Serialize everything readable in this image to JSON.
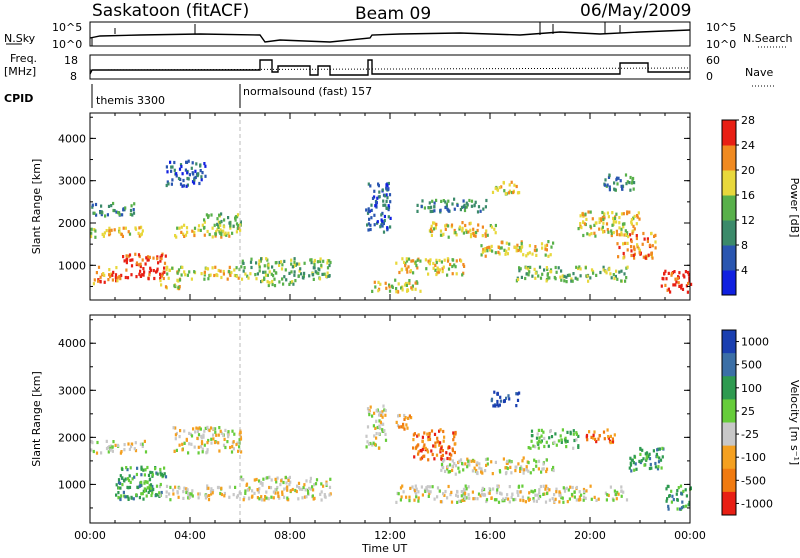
{
  "header": {
    "station": "Saskatoon (fitACF)",
    "beam": "Beam 09",
    "date": "06/May/2009"
  },
  "top_panels": {
    "nsky_label": "N.Sky",
    "nsky_ticks": [
      "10^5",
      "10^0"
    ],
    "nsearch_label": "N.Search",
    "nsearch_ticks": [
      "10^5",
      "10^0"
    ],
    "freq_label_1": "Freq.",
    "freq_label_2": "[MHz]",
    "freq_ticks": [
      "18",
      "8"
    ],
    "nave_label": "Nave",
    "nave_ticks": [
      "60",
      "0"
    ],
    "cpid_label": "CPID",
    "cpid_segments": [
      {
        "label": "themis 3300",
        "start_h": 0.0
      },
      {
        "label": "normalsound (fast) 157",
        "start_h": 6.0
      }
    ]
  },
  "chart_data": [
    {
      "type": "heatmap",
      "title": "",
      "quantity": "Power",
      "ylabel": "Slant Range [km]",
      "ylim": [
        180,
        4600
      ],
      "y_ticks": [
        "1000",
        "2000",
        "3000",
        "4000"
      ],
      "xlim_hours": [
        0,
        24
      ],
      "colorbar_label": "Power [dB]",
      "colorbar_ticks": [
        "4",
        "8",
        "12",
        "16",
        "20",
        "24",
        "28"
      ],
      "colorbar_colors": [
        "#1020e0",
        "#2a56b0",
        "#3b8a6a",
        "#58b04a",
        "#e8d83c",
        "#f08a20",
        "#e81f14"
      ],
      "regions": [
        {
          "t0": 0.0,
          "t1": 2.2,
          "r0": 1700,
          "r1": 1950,
          "level": 4
        },
        {
          "t0": 0.0,
          "t1": 1.8,
          "r0": 2200,
          "r1": 2500,
          "level": 2
        },
        {
          "t0": 1.2,
          "t1": 3.0,
          "r0": 700,
          "r1": 1300,
          "level": 6
        },
        {
          "t0": 0.1,
          "t1": 1.2,
          "r0": 600,
          "r1": 1000,
          "level": 5
        },
        {
          "t0": 3.3,
          "t1": 6.0,
          "r0": 1700,
          "r1": 2000,
          "level": 4
        },
        {
          "t0": 4.5,
          "t1": 6.0,
          "r0": 1900,
          "r1": 2250,
          "level": 3
        },
        {
          "t0": 3.0,
          "t1": 6.0,
          "r0": 700,
          "r1": 1000,
          "level": 4
        },
        {
          "t0": 2.7,
          "t1": 3.6,
          "r0": 450,
          "r1": 700,
          "level": 4
        },
        {
          "t0": 3.0,
          "t1": 4.6,
          "r0": 2900,
          "r1": 3500,
          "level": 1
        },
        {
          "t0": 6.0,
          "t1": 9.6,
          "r0": 700,
          "r1": 1200,
          "level": 3
        },
        {
          "t0": 6.8,
          "t1": 8.2,
          "r0": 550,
          "r1": 750,
          "level": 3
        },
        {
          "t0": 11.0,
          "t1": 12.0,
          "r0": 1800,
          "r1": 3000,
          "level": 1
        },
        {
          "t0": 11.2,
          "t1": 13.2,
          "r0": 400,
          "r1": 700,
          "level": 4
        },
        {
          "t0": 12.2,
          "t1": 15.0,
          "r0": 800,
          "r1": 1200,
          "level": 4
        },
        {
          "t0": 13.5,
          "t1": 16.2,
          "r0": 1700,
          "r1": 2050,
          "level": 4
        },
        {
          "t0": 15.5,
          "t1": 18.5,
          "r0": 1250,
          "r1": 1600,
          "level": 4
        },
        {
          "t0": 16.0,
          "t1": 17.2,
          "r0": 2700,
          "r1": 3000,
          "level": 4
        },
        {
          "t0": 17.0,
          "t1": 21.5,
          "r0": 650,
          "r1": 1000,
          "level": 3
        },
        {
          "t0": 19.5,
          "t1": 22.0,
          "r0": 1700,
          "r1": 2300,
          "level": 4
        },
        {
          "t0": 21.0,
          "t1": 22.6,
          "r0": 1200,
          "r1": 1800,
          "level": 5
        },
        {
          "t0": 22.8,
          "t1": 24.0,
          "r0": 400,
          "r1": 900,
          "level": 6
        },
        {
          "t0": 20.5,
          "t1": 21.8,
          "r0": 2800,
          "r1": 3200,
          "level": 2
        },
        {
          "t0": 13.0,
          "t1": 16.0,
          "r0": 2300,
          "r1": 2600,
          "level": 2
        }
      ]
    },
    {
      "type": "heatmap",
      "title": "",
      "quantity": "Velocity",
      "ylabel": "Slant Range [km]",
      "ylim": [
        180,
        4600
      ],
      "y_ticks": [
        "1000",
        "2000",
        "3000",
        "4000"
      ],
      "xlim_hours": [
        0,
        24
      ],
      "colorbar_label": "Velocity [m s⁻¹]",
      "colorbar_ticks": [
        "1000",
        "500",
        "100",
        "25",
        "-25",
        "-100",
        "-500",
        "-1000"
      ],
      "colorbar_colors": [
        "#1a3fb0",
        "#3b6fa6",
        "#2e9a50",
        "#66cc3a",
        "#c8c8c8",
        "#f4a020",
        "#f07a10",
        "#e81f14"
      ],
      "regions": [
        {
          "t0": 0.0,
          "t1": 2.2,
          "r0": 1700,
          "r1": 1950,
          "level": 4
        },
        {
          "t0": 1.0,
          "t1": 3.0,
          "r0": 700,
          "r1": 1400,
          "level": 2
        },
        {
          "t0": 1.8,
          "t1": 2.8,
          "r0": 800,
          "r1": 1100,
          "level": 3
        },
        {
          "t0": 3.3,
          "t1": 6.0,
          "r0": 1700,
          "r1": 2250,
          "level": 4
        },
        {
          "t0": 3.0,
          "t1": 6.0,
          "r0": 700,
          "r1": 1000,
          "level": 4
        },
        {
          "t0": 6.0,
          "t1": 9.6,
          "r0": 700,
          "r1": 1200,
          "level": 4
        },
        {
          "t0": 12.8,
          "t1": 14.6,
          "r0": 1550,
          "r1": 2200,
          "level": 6
        },
        {
          "t0": 12.2,
          "t1": 13.0,
          "r0": 2200,
          "r1": 2500,
          "level": 5
        },
        {
          "t0": 14.0,
          "t1": 18.5,
          "r0": 1250,
          "r1": 1600,
          "level": 4
        },
        {
          "t0": 12.2,
          "t1": 21.5,
          "r0": 650,
          "r1": 1000,
          "level": 4
        },
        {
          "t0": 16.0,
          "t1": 17.2,
          "r0": 2700,
          "r1": 3000,
          "level": 0
        },
        {
          "t0": 17.5,
          "t1": 19.5,
          "r0": 1800,
          "r1": 2200,
          "level": 3
        },
        {
          "t0": 19.8,
          "t1": 21.0,
          "r0": 1900,
          "r1": 2200,
          "level": 6
        },
        {
          "t0": 21.5,
          "t1": 23.0,
          "r0": 1300,
          "r1": 1800,
          "level": 2
        },
        {
          "t0": 23.0,
          "t1": 24.0,
          "r0": 500,
          "r1": 1000,
          "level": 2
        },
        {
          "t0": 11.0,
          "t1": 11.8,
          "r0": 1800,
          "r1": 2700,
          "level": 4
        }
      ]
    }
  ],
  "x_axis": {
    "label": "Time UT",
    "ticks": [
      "00:00",
      "04:00",
      "08:00",
      "12:00",
      "16:00",
      "20:00",
      "00:00"
    ]
  }
}
